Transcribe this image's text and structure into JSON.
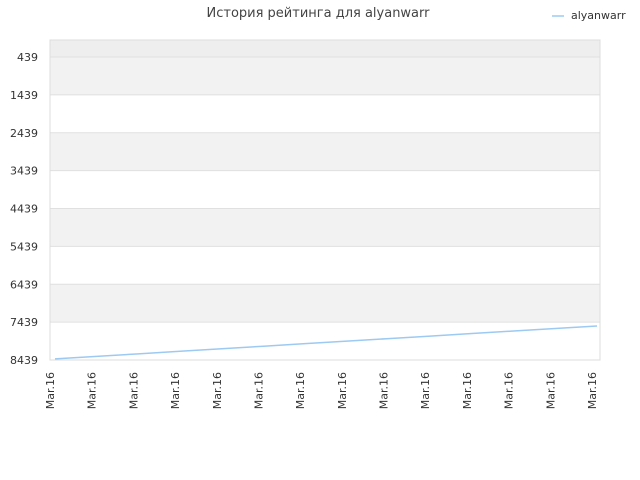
{
  "chart_data": {
    "type": "line",
    "title": "История рейтинга для alyanwarr",
    "categories": [
      "Mar.16",
      "Mar.16",
      "Mar.16",
      "Mar.16",
      "Mar.16",
      "Mar.16",
      "Mar.16",
      "Mar.16",
      "Mar.16",
      "Mar.16",
      "Mar.16",
      "Mar.16",
      "Mar.16",
      "Mar.16"
    ],
    "series": [
      {
        "name": "alyanwarr",
        "color": "#9ccaf2",
        "values": [
          8410,
          8343,
          8276,
          8209,
          8142,
          8075,
          8008,
          7941,
          7874,
          7807,
          7740,
          7673,
          7606,
          7540
        ]
      }
    ],
    "ylim": [
      8439,
      -11
    ],
    "yticks": [
      439,
      1439,
      2439,
      3439,
      4439,
      5439,
      6439,
      7439,
      8439
    ],
    "grid": true,
    "legend": "top-right"
  }
}
